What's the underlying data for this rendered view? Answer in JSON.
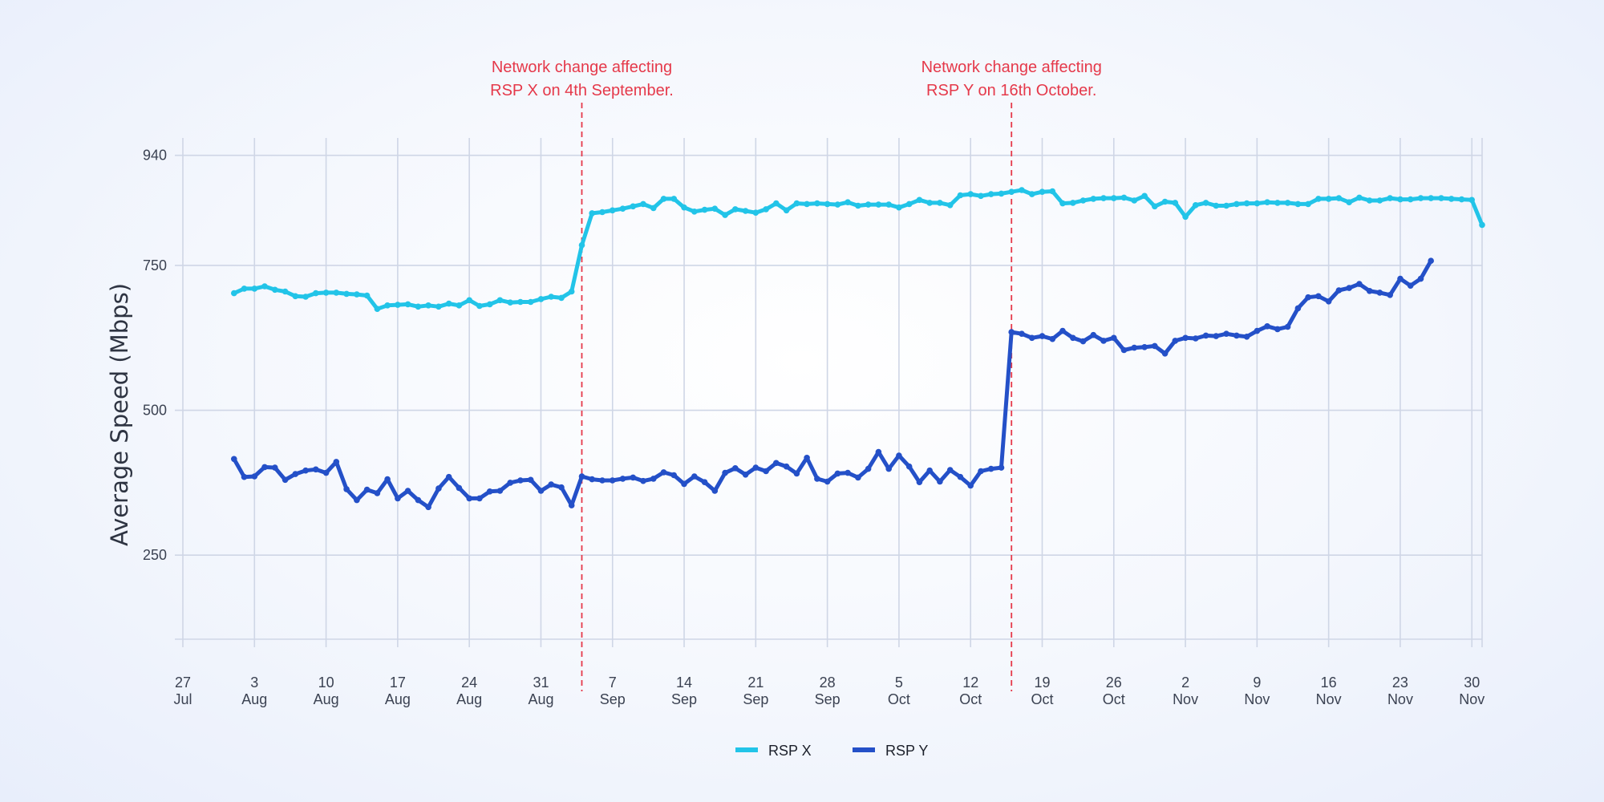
{
  "chart_data": {
    "type": "line",
    "ylabel": "Average Speed (Mbps)",
    "xlabel": "",
    "ylim": [
      105,
      970
    ],
    "xlim": [
      "2024-07-27",
      "2024-12-01"
    ],
    "yticks": [
      250,
      500,
      750,
      940
    ],
    "xticks": [
      {
        "date": "2024-07-27",
        "day": "27",
        "month": "Jul"
      },
      {
        "date": "2024-08-03",
        "day": "3",
        "month": "Aug"
      },
      {
        "date": "2024-08-10",
        "day": "10",
        "month": "Aug"
      },
      {
        "date": "2024-08-17",
        "day": "17",
        "month": "Aug"
      },
      {
        "date": "2024-08-24",
        "day": "24",
        "month": "Aug"
      },
      {
        "date": "2024-08-31",
        "day": "31",
        "month": "Aug"
      },
      {
        "date": "2024-09-07",
        "day": "7",
        "month": "Sep"
      },
      {
        "date": "2024-09-14",
        "day": "14",
        "month": "Sep"
      },
      {
        "date": "2024-09-21",
        "day": "21",
        "month": "Sep"
      },
      {
        "date": "2024-09-28",
        "day": "28",
        "month": "Sep"
      },
      {
        "date": "2024-10-05",
        "day": "5",
        "month": "Oct"
      },
      {
        "date": "2024-10-12",
        "day": "12",
        "month": "Oct"
      },
      {
        "date": "2024-10-19",
        "day": "19",
        "month": "Oct"
      },
      {
        "date": "2024-10-26",
        "day": "26",
        "month": "Oct"
      },
      {
        "date": "2024-11-02",
        "day": "2",
        "month": "Nov"
      },
      {
        "date": "2024-11-09",
        "day": "9",
        "month": "Nov"
      },
      {
        "date": "2024-11-16",
        "day": "16",
        "month": "Nov"
      },
      {
        "date": "2024-11-23",
        "day": "23",
        "month": "Nov"
      },
      {
        "date": "2024-11-30",
        "day": "30",
        "month": "Nov"
      }
    ],
    "x_start": "2024-08-01",
    "legend_position": "bottom-center",
    "grid": true,
    "annotations": [
      {
        "date": "2024-09-04",
        "lines": [
          "Network change affecting",
          "RSP X on 4th September."
        ],
        "color": "#e5394a"
      },
      {
        "date": "2024-10-16",
        "lines": [
          "Network change affecting",
          "RSP Y on 16th October."
        ],
        "color": "#e5394a"
      }
    ],
    "series": [
      {
        "name": "RSP X",
        "color": "#22c4e8",
        "values": [
          702,
          710,
          710,
          714,
          708,
          705,
          697,
          696,
          702,
          703,
          703,
          701,
          700,
          698,
          675,
          681,
          682,
          683,
          679,
          681,
          679,
          684,
          681,
          690,
          680,
          683,
          690,
          686,
          687,
          687,
          692,
          696,
          694,
          705,
          785,
          840,
          842,
          845,
          848,
          852,
          856,
          849,
          865,
          865,
          850,
          843,
          846,
          848,
          837,
          847,
          844,
          841,
          847,
          857,
          845,
          857,
          856,
          857,
          856,
          855,
          859,
          853,
          855,
          855,
          855,
          850,
          856,
          863,
          858,
          858,
          854,
          871,
          873,
          870,
          873,
          874,
          877,
          880,
          873,
          877,
          878,
          857,
          858,
          862,
          865,
          866,
          866,
          867,
          862,
          870,
          852,
          860,
          858,
          834,
          854,
          858,
          853,
          853,
          856,
          857,
          857,
          859,
          858,
          858,
          856,
          856,
          865,
          865,
          866,
          859,
          867,
          862,
          862,
          866,
          864,
          864,
          866,
          866,
          866,
          865,
          864,
          863,
          820
        ],
        "start_date": "2024-08-01"
      },
      {
        "name": "RSP Y",
        "color": "#2450c8",
        "values": [
          416,
          385,
          386,
          402,
          401,
          380,
          390,
          396,
          398,
          392,
          411,
          364,
          345,
          363,
          357,
          381,
          348,
          361,
          345,
          333,
          365,
          385,
          366,
          348,
          348,
          360,
          361,
          375,
          379,
          380,
          361,
          372,
          367,
          336,
          386,
          381,
          379,
          379,
          382,
          384,
          378,
          382,
          393,
          388,
          373,
          386,
          376,
          361,
          392,
          400,
          389,
          401,
          395,
          409,
          403,
          391,
          418,
          382,
          377,
          391,
          392,
          384,
          399,
          428,
          399,
          422,
          403,
          376,
          396,
          377,
          397,
          385,
          370,
          395,
          399,
          401,
          635,
          632,
          625,
          628,
          623,
          637,
          625,
          619,
          630,
          620,
          625,
          604,
          608,
          609,
          611,
          598,
          620,
          625,
          624,
          629,
          628,
          632,
          629,
          627,
          637,
          645,
          640,
          644,
          676,
          695,
          697,
          688,
          707,
          711,
          718,
          706,
          703,
          699,
          727,
          715,
          727,
          758
        ],
        "start_date": "2024-08-01"
      }
    ]
  }
}
